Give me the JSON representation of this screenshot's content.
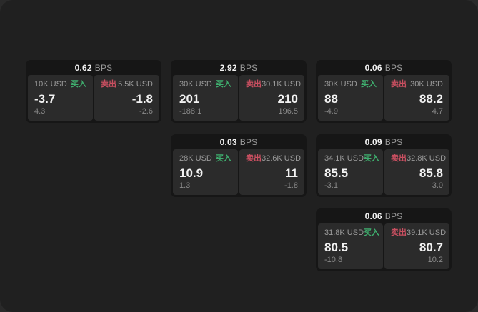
{
  "labels": {
    "bps": "BPS",
    "buy": "买入",
    "sell": "卖出"
  },
  "colors": {
    "buy_green": "#3fae6e",
    "sell_red": "#c84f60",
    "panel_bg": "#202020",
    "card_bg": "#161616",
    "tile_bg": "#2b2b2b",
    "value_text": "#f2f2f2",
    "label_text": "#9b9b9b"
  },
  "cards": [
    {
      "bps": "0.62",
      "col": 0,
      "row": 0,
      "buy": {
        "amount": "10K USD",
        "value": "-3.7",
        "sub": "4.3"
      },
      "sell": {
        "amount": "5.5K USD",
        "value": "-1.8",
        "sub": "-2.6"
      }
    },
    {
      "bps": "2.92",
      "col": 1,
      "row": 0,
      "buy": {
        "amount": "30K USD",
        "value": "201",
        "sub": "-188.1"
      },
      "sell": {
        "amount": "30.1K USD",
        "value": "210",
        "sub": "196.5"
      }
    },
    {
      "bps": "0.03",
      "col": 1,
      "row": 1,
      "buy": {
        "amount": "28K USD",
        "value": "10.9",
        "sub": "1.3"
      },
      "sell": {
        "amount": "32.6K USD",
        "value": "11",
        "sub": "-1.8"
      }
    },
    {
      "bps": "0.06",
      "col": 2,
      "row": 0,
      "buy": {
        "amount": "30K USD",
        "value": "88",
        "sub": "-4.9"
      },
      "sell": {
        "amount": "30K USD",
        "value": "88.2",
        "sub": "4.7"
      }
    },
    {
      "bps": "0.09",
      "col": 2,
      "row": 1,
      "buy": {
        "amount": "34.1K USD",
        "value": "85.5",
        "sub": "-3.1"
      },
      "sell": {
        "amount": "32.8K USD",
        "value": "85.8",
        "sub": "3.0"
      }
    },
    {
      "bps": "0.06",
      "col": 2,
      "row": 2,
      "buy": {
        "amount": "31.8K USD",
        "value": "80.5",
        "sub": "-10.8"
      },
      "sell": {
        "amount": "39.1K USD",
        "value": "80.7",
        "sub": "10.2"
      }
    }
  ]
}
